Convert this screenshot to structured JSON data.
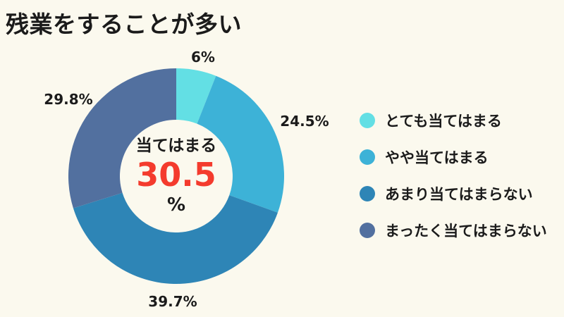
{
  "page": {
    "title": "残業をすることが多い",
    "background": "#FBF9EE",
    "text_color": "#1B1B1B",
    "accent_red": "#F43B2D"
  },
  "chart_data": {
    "type": "pie",
    "subtype": "donut",
    "title": "残業をすることが多い",
    "categories": [
      "とても当てはまる",
      "やや当てはまる",
      "あまり当てはまらない",
      "まったく当てはまらない"
    ],
    "values": [
      6,
      24.5,
      39.7,
      29.8
    ],
    "labels": [
      "6%",
      "24.5%",
      "39.7%",
      "29.8%"
    ],
    "colors": [
      "#63DFE4",
      "#3DB2D7",
      "#2E85B6",
      "#52709F"
    ],
    "start_angle_deg": 0,
    "direction": "clockwise",
    "inner_radius_ratio": 0.52,
    "legend_position": "right",
    "center_label": {
      "caption": "当てはまる",
      "value": "30.5",
      "unit": "%"
    }
  }
}
